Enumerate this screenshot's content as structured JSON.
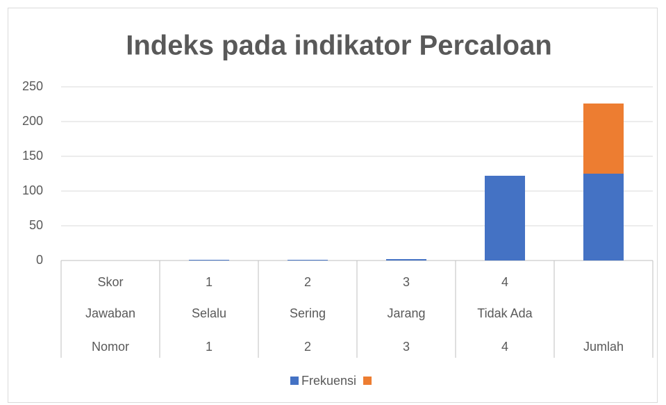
{
  "chart_data": {
    "type": "bar",
    "stacked": true,
    "title": "Indeks pada indikator Percaloan",
    "category_levels": [
      [
        "Skor",
        "1",
        "2",
        "3",
        "4",
        null
      ],
      [
        "Jawaban",
        "Selalu",
        "Sering",
        "Jarang",
        "Tidak Ada",
        null
      ],
      [
        "Nomor",
        "1",
        "2",
        "3",
        "4",
        "Jumlah"
      ]
    ],
    "series": [
      {
        "name": "Frekuensi",
        "color": "#4472c4",
        "values": [
          null,
          1,
          1,
          2,
          122,
          125
        ]
      },
      {
        "color": "#ed7d31",
        "values": [
          null,
          null,
          null,
          null,
          null,
          101
        ]
      }
    ],
    "ylim": [
      0,
      250
    ],
    "yticks": [
      0,
      50,
      100,
      150,
      200,
      250
    ],
    "grid": true,
    "legend": "bottom"
  }
}
